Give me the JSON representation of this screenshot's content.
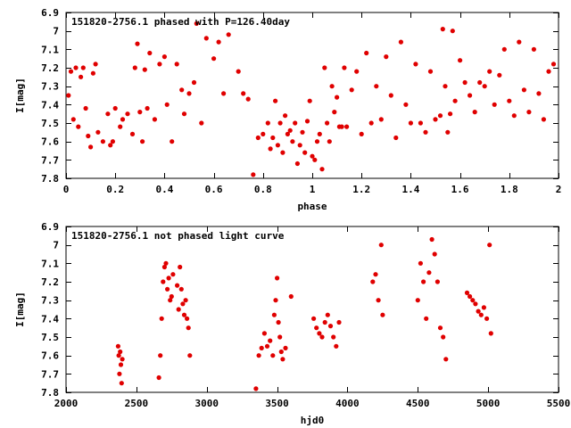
{
  "chart_data": [
    {
      "type": "scatter",
      "title": "151820-2756.1 phased with P=126.40day",
      "xlabel": "phase",
      "ylabel": "I[mag]",
      "xlim": [
        0,
        2
      ],
      "ylim": [
        6.9,
        7.8
      ],
      "y_inverted": true,
      "grid": false,
      "xticks": [
        "0",
        "0.2",
        "0.4",
        "0.6",
        "0.8",
        "1",
        "1.2",
        "1.4",
        "1.6",
        "1.8",
        "2"
      ],
      "yticks": [
        "6.9",
        "7",
        "7.1",
        "7.2",
        "7.3",
        "7.4",
        "7.5",
        "7.6",
        "7.7",
        "7.8"
      ],
      "color": "#e00000",
      "x": [
        0.01,
        0.02,
        0.03,
        0.04,
        0.05,
        0.06,
        0.07,
        0.08,
        0.09,
        0.1,
        0.11,
        0.12,
        0.13,
        0.15,
        0.17,
        0.18,
        0.19,
        0.2,
        0.22,
        0.23,
        0.25,
        0.27,
        0.28,
        0.29,
        0.3,
        0.31,
        0.32,
        0.33,
        0.34,
        0.36,
        0.38,
        0.4,
        0.41,
        0.43,
        0.45,
        0.47,
        0.48,
        0.5,
        0.52,
        0.53,
        0.55,
        0.57,
        0.6,
        0.62,
        0.64,
        0.66,
        0.7,
        0.72,
        0.74,
        0.76,
        0.78,
        0.8,
        0.82,
        0.83,
        0.84,
        0.85,
        0.86,
        0.87,
        0.88,
        0.89,
        0.9,
        0.91,
        0.92,
        0.93,
        0.94,
        0.95,
        0.96,
        0.97,
        0.98,
        0.99,
        1.0,
        1.01,
        1.02,
        1.03,
        1.04,
        1.05,
        1.06,
        1.07,
        1.08,
        1.09,
        1.1,
        1.11,
        1.12,
        1.13,
        1.14,
        1.16,
        1.18,
        1.2,
        1.22,
        1.24,
        1.26,
        1.28,
        1.3,
        1.32,
        1.34,
        1.36,
        1.38,
        1.4,
        1.42,
        1.44,
        1.46,
        1.48,
        1.5,
        1.52,
        1.53,
        1.54,
        1.55,
        1.56,
        1.57,
        1.58,
        1.6,
        1.62,
        1.64,
        1.66,
        1.68,
        1.7,
        1.72,
        1.74,
        1.76,
        1.78,
        1.8,
        1.82,
        1.84,
        1.86,
        1.88,
        1.9,
        1.92,
        1.94,
        1.96,
        1.98
      ],
      "y": [
        7.35,
        7.22,
        7.48,
        7.2,
        7.52,
        7.25,
        7.2,
        7.42,
        7.57,
        7.63,
        7.23,
        7.18,
        7.55,
        7.6,
        7.45,
        7.62,
        7.6,
        7.42,
        7.52,
        7.48,
        7.45,
        7.56,
        7.2,
        7.07,
        7.44,
        7.6,
        7.21,
        7.42,
        7.12,
        7.48,
        7.18,
        7.14,
        7.4,
        7.6,
        7.18,
        7.32,
        7.45,
        7.34,
        7.28,
        6.96,
        7.5,
        7.04,
        7.15,
        7.06,
        7.34,
        7.02,
        7.22,
        7.34,
        7.37,
        7.78,
        7.58,
        7.56,
        7.5,
        7.64,
        7.58,
        7.38,
        7.62,
        7.5,
        7.66,
        7.46,
        7.56,
        7.54,
        7.6,
        7.5,
        7.72,
        7.62,
        7.55,
        7.66,
        7.49,
        7.38,
        7.68,
        7.7,
        7.6,
        7.56,
        7.75,
        7.2,
        7.5,
        7.6,
        7.3,
        7.44,
        7.36,
        7.52,
        7.52,
        7.2,
        7.52,
        7.32,
        7.22,
        7.56,
        7.12,
        7.5,
        7.3,
        7.48,
        7.14,
        7.35,
        7.58,
        7.06,
        7.4,
        7.5,
        7.18,
        7.5,
        7.55,
        7.22,
        7.48,
        7.46,
        6.99,
        7.3,
        7.55,
        7.45,
        7.0,
        7.38,
        7.16,
        7.28,
        7.35,
        7.44,
        7.28,
        7.3,
        7.22,
        7.4,
        7.24,
        7.1,
        7.38,
        7.46,
        7.06,
        7.32,
        7.44,
        7.1,
        7.34,
        7.48,
        7.22,
        7.18
      ]
    },
    {
      "type": "scatter",
      "title": "151820-2756.1 not phased light curve",
      "xlabel": "hjd0",
      "ylabel": "I[mag]",
      "xlim": [
        2000,
        5500
      ],
      "ylim": [
        6.9,
        7.8
      ],
      "y_inverted": true,
      "grid": false,
      "xticks": [
        "2000",
        "2500",
        "3000",
        "3500",
        "4000",
        "4500",
        "5000",
        "5500"
      ],
      "yticks": [
        "6.9",
        "7",
        "7.1",
        "7.2",
        "7.3",
        "7.4",
        "7.5",
        "7.6",
        "7.7",
        "7.8"
      ],
      "color": "#e00000",
      "x": [
        2370,
        2375,
        2380,
        2385,
        2390,
        2395,
        2400,
        2660,
        2670,
        2680,
        2690,
        2700,
        2710,
        2720,
        2730,
        2740,
        2750,
        2760,
        2790,
        2800,
        2810,
        2820,
        2830,
        2840,
        2850,
        2860,
        2870,
        2880,
        3350,
        3370,
        3390,
        3410,
        3430,
        3450,
        3470,
        3480,
        3490,
        3500,
        3510,
        3520,
        3530,
        3540,
        3560,
        3600,
        3760,
        3780,
        3800,
        3820,
        3840,
        3860,
        3880,
        3900,
        3920,
        3940,
        4180,
        4200,
        4220,
        4240,
        4250,
        4500,
        4520,
        4540,
        4560,
        4580,
        4600,
        4620,
        4640,
        4660,
        4680,
        4700,
        4850,
        4870,
        4890,
        4910,
        4930,
        4950,
        4970,
        4990,
        5010,
        5020
      ],
      "y": [
        7.55,
        7.6,
        7.7,
        7.58,
        7.65,
        7.75,
        7.62,
        7.72,
        7.6,
        7.4,
        7.2,
        7.12,
        7.1,
        7.24,
        7.18,
        7.3,
        7.28,
        7.16,
        7.22,
        7.35,
        7.12,
        7.24,
        7.32,
        7.38,
        7.3,
        7.4,
        7.45,
        7.6,
        7.78,
        7.6,
        7.56,
        7.48,
        7.55,
        7.52,
        7.6,
        7.38,
        7.3,
        7.18,
        7.42,
        7.5,
        7.58,
        7.62,
        7.56,
        7.28,
        7.4,
        7.45,
        7.48,
        7.5,
        7.42,
        7.38,
        7.44,
        7.5,
        7.55,
        7.42,
        7.2,
        7.16,
        7.3,
        7.0,
        7.38,
        7.3,
        7.1,
        7.2,
        7.4,
        7.15,
        6.97,
        7.05,
        7.2,
        7.45,
        7.5,
        7.62,
        7.26,
        7.28,
        7.3,
        7.32,
        7.36,
        7.38,
        7.34,
        7.4,
        7.0,
        7.48
      ]
    }
  ]
}
